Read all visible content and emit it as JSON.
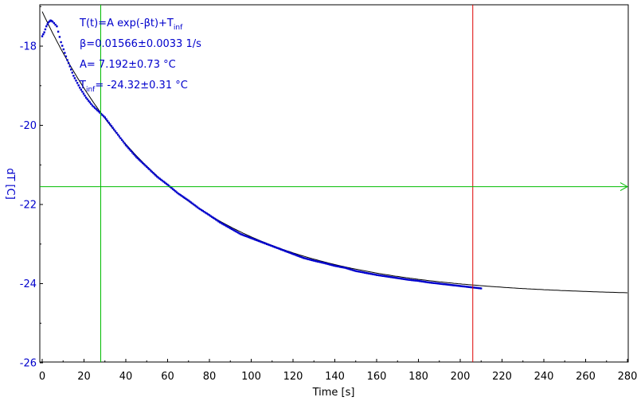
{
  "chart_data": {
    "type": "scatter",
    "xlabel": "Time [s]",
    "ylabel": "dT [C]",
    "xlim": [
      0,
      280
    ],
    "ylim": [
      -26,
      -17
    ],
    "xticks": [
      0,
      20,
      40,
      60,
      80,
      100,
      120,
      140,
      160,
      180,
      200,
      220,
      240,
      260,
      280
    ],
    "yticks": [
      -18,
      -20,
      -22,
      -24,
      -26
    ],
    "grid": false,
    "colors": {
      "data": "#0000cc",
      "fit": "#000000",
      "green_line": "#00bb00",
      "red_line": "#dd0000",
      "axis_text": "#0000cc"
    },
    "annotations": {
      "formula_main": "T(t)=A exp(-βt)+T",
      "formula_sub": "inf",
      "beta": "β=0.01566±0.0033 1/s",
      "amp": "A= 7.192±0.73 °C",
      "tinf_sub": "inf",
      "tinf_value": "= -24.32±0.31 °C"
    },
    "fit": {
      "formula": "T(t)=A exp(-βt)+Tinf",
      "A": 7.192,
      "beta": 0.01566,
      "Tinf": -24.32,
      "x_range": [
        0,
        280
      ]
    },
    "series": [
      {
        "x": [
          0,
          1,
          2,
          3,
          4,
          5,
          7,
          9,
          12,
          15,
          18,
          21,
          24,
          27,
          30,
          35,
          40,
          45,
          50,
          55,
          60,
          65,
          70,
          75,
          80,
          85,
          90,
          95,
          100,
          105,
          110,
          115,
          120,
          125,
          130,
          135,
          140,
          145,
          150,
          155,
          160,
          165,
          170,
          175,
          180,
          185,
          190,
          195,
          200,
          205,
          210
        ],
        "y": [
          -17.75,
          -17.65,
          -17.5,
          -17.4,
          -17.35,
          -17.38,
          -17.5,
          -17.9,
          -18.35,
          -18.75,
          -19.05,
          -19.3,
          -19.5,
          -19.65,
          -19.8,
          -20.15,
          -20.5,
          -20.8,
          -21.05,
          -21.3,
          -21.5,
          -21.72,
          -21.9,
          -22.1,
          -22.27,
          -22.45,
          -22.6,
          -22.75,
          -22.85,
          -22.95,
          -23.05,
          -23.15,
          -23.25,
          -23.35,
          -23.42,
          -23.48,
          -23.55,
          -23.6,
          -23.68,
          -23.73,
          -23.78,
          -23.82,
          -23.86,
          -23.9,
          -23.93,
          -23.97,
          -24.0,
          -24.03,
          -24.06,
          -24.09,
          -24.12
        ]
      }
    ],
    "vlines": [
      {
        "x": 28,
        "color": "#00bb00"
      },
      {
        "x": 206,
        "color": "#dd0000"
      }
    ],
    "hline": {
      "y": -21.55,
      "color": "#00bb00",
      "arrow": true
    }
  }
}
